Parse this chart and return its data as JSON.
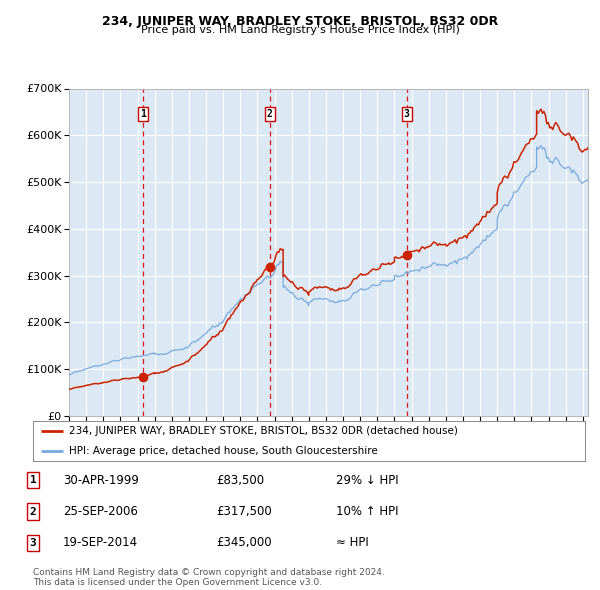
{
  "title1": "234, JUNIPER WAY, BRADLEY STOKE, BRISTOL, BS32 0DR",
  "title2": "Price paid vs. HM Land Registry's House Price Index (HPI)",
  "plot_bg_color": "#dce9f5",
  "grid_color": "#ffffff",
  "hpi_color": "#7aaadd",
  "price_color": "#cc2200",
  "vline_color": "#dd0000",
  "ylim": [
    0,
    700000
  ],
  "yticks": [
    0,
    100000,
    200000,
    300000,
    400000,
    500000,
    600000,
    700000
  ],
  "ytick_labels": [
    "£0",
    "£100K",
    "£200K",
    "£300K",
    "£400K",
    "£500K",
    "£600K",
    "£700K"
  ],
  "sales": [
    {
      "num": 1,
      "date": "30-APR-1999",
      "price": 83500,
      "year": 1999.33,
      "rel": "29% ↓ HPI"
    },
    {
      "num": 2,
      "date": "25-SEP-2006",
      "price": 317500,
      "year": 2006.73,
      "rel": "10% ↑ HPI"
    },
    {
      "num": 3,
      "date": "19-SEP-2014",
      "price": 345000,
      "year": 2014.72,
      "rel": "≈ HPI"
    }
  ],
  "legend_line1": "234, JUNIPER WAY, BRADLEY STOKE, BRISTOL, BS32 0DR (detached house)",
  "legend_line2": "HPI: Average price, detached house, South Gloucestershire",
  "table_rows": [
    [
      1,
      "30-APR-1999",
      "£83,500",
      "29% ↓ HPI"
    ],
    [
      2,
      "25-SEP-2006",
      "£317,500",
      "10% ↑ HPI"
    ],
    [
      3,
      "19-SEP-2014",
      "£345,000",
      "≈ HPI"
    ]
  ],
  "footnote": "Contains HM Land Registry data © Crown copyright and database right 2024.\nThis data is licensed under the Open Government Licence v3.0.",
  "xmin": 1995.0,
  "xmax": 2025.3
}
